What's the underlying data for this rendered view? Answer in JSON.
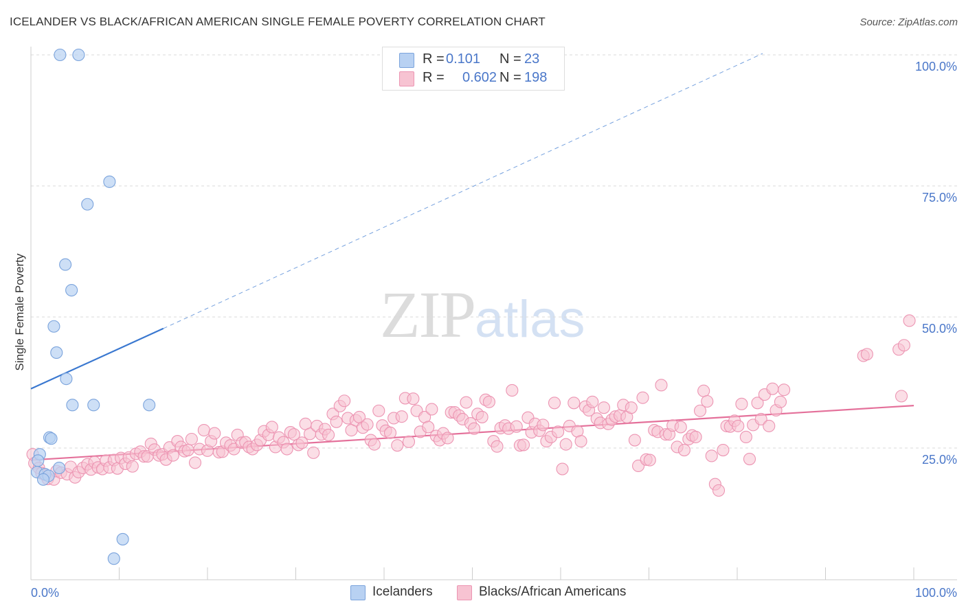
{
  "header": {
    "title": "ICELANDER VS BLACK/AFRICAN AMERICAN SINGLE FEMALE POVERTY CORRELATION CHART",
    "source": "Source: ZipAtlas.com"
  },
  "legend": {
    "rows": [
      {
        "r_label": "R =",
        "r_value": "0.101",
        "n_label": "N =",
        "n_value": "23"
      },
      {
        "r_label": "R =",
        "r_value": "0.602",
        "n_label": "N =",
        "n_value": "198"
      }
    ]
  },
  "bottom_legend": {
    "items": [
      {
        "label": "Icelanders"
      },
      {
        "label": "Blacks/African Americans"
      }
    ]
  },
  "watermark": {
    "zip": "ZIP",
    "atlas": "atlas"
  },
  "colors": {
    "blue_fill": "#b8d1f2",
    "blue_stroke": "#7aa3dc",
    "blue_line": "#3a78d0",
    "pink_fill": "#f7c3d2",
    "pink_stroke": "#ec94b2",
    "pink_line": "#e4709a",
    "grid": "#d9d9d9",
    "axis_text": "#4a77c9"
  },
  "chart_data": {
    "type": "scatter",
    "title": "ICELANDER VS BLACK/AFRICAN AMERICAN SINGLE FEMALE POVERTY CORRELATION CHART",
    "xlabel": "",
    "ylabel": "Single Female Poverty",
    "xlim": [
      0,
      100
    ],
    "ylim": [
      0,
      100
    ],
    "x_tick_labels": [
      "0.0%",
      "100.0%"
    ],
    "y_tick_labels": [
      "25.0%",
      "50.0%",
      "75.0%",
      "100.0%"
    ],
    "y_ticks": [
      25,
      50,
      75,
      100
    ],
    "grid": true,
    "legend_position": "top-center",
    "series": [
      {
        "name": "Icelanders",
        "color": "#b8d1f2",
        "R": 0.101,
        "N": 23,
        "trend": {
          "x": [
            0,
            15
          ],
          "y": [
            36.3,
            47.8
          ],
          "dashed_to": {
            "x": 100,
            "y": 110
          }
        },
        "points": [
          [
            3.3,
            100
          ],
          [
            5.4,
            100
          ],
          [
            8.9,
            75.8
          ],
          [
            6.4,
            71.5
          ],
          [
            3.9,
            60.0
          ],
          [
            4.6,
            55.1
          ],
          [
            2.6,
            48.2
          ],
          [
            2.9,
            43.2
          ],
          [
            4.0,
            38.2
          ],
          [
            4.7,
            33.2
          ],
          [
            7.1,
            33.2
          ],
          [
            13.4,
            33.2
          ],
          [
            2.1,
            27.0
          ],
          [
            2.3,
            26.8
          ],
          [
            1.0,
            23.8
          ],
          [
            0.8,
            22.6
          ],
          [
            3.2,
            21.2
          ],
          [
            0.7,
            20.4
          ],
          [
            1.6,
            20.0
          ],
          [
            2.0,
            19.7
          ],
          [
            1.4,
            19.0
          ],
          [
            10.4,
            7.6
          ],
          [
            9.4,
            3.9
          ]
        ]
      },
      {
        "name": "Blacks/African Americans",
        "color": "#f7c3d2",
        "R": 0.602,
        "N": 198,
        "trend": {
          "x": [
            0,
            100
          ],
          "y": [
            22.7,
            33.1
          ]
        },
        "points": [
          [
            0.2,
            23.8
          ],
          [
            0.4,
            22.1
          ],
          [
            0.9,
            21.2
          ],
          [
            1.2,
            20.2
          ],
          [
            1.6,
            19.9
          ],
          [
            1.9,
            19.1
          ],
          [
            2.6,
            19.0
          ],
          [
            2.9,
            20.6
          ],
          [
            3.4,
            20.3
          ],
          [
            4.1,
            20.0
          ],
          [
            4.5,
            21.4
          ],
          [
            5.0,
            19.4
          ],
          [
            5.4,
            20.4
          ],
          [
            5.9,
            21.2
          ],
          [
            6.4,
            21.9
          ],
          [
            6.8,
            20.9
          ],
          [
            7.2,
            22.3
          ],
          [
            7.6,
            21.3
          ],
          [
            8.1,
            21.0
          ],
          [
            8.5,
            22.6
          ],
          [
            8.9,
            21.3
          ],
          [
            9.4,
            22.7
          ],
          [
            9.8,
            21.1
          ],
          [
            10.2,
            23.1
          ],
          [
            10.7,
            22.0
          ],
          [
            11.1,
            23.2
          ],
          [
            11.5,
            21.5
          ],
          [
            11.9,
            23.9
          ],
          [
            12.4,
            24.3
          ],
          [
            12.8,
            23.4
          ],
          [
            13.2,
            23.4
          ],
          [
            13.6,
            25.8
          ],
          [
            14.0,
            24.7
          ],
          [
            14.5,
            23.6
          ],
          [
            14.9,
            23.8
          ],
          [
            15.3,
            22.8
          ],
          [
            15.7,
            25.1
          ],
          [
            16.1,
            23.6
          ],
          [
            16.6,
            26.3
          ],
          [
            17.0,
            25.2
          ],
          [
            17.4,
            24.4
          ],
          [
            17.8,
            24.6
          ],
          [
            18.2,
            26.7
          ],
          [
            18.6,
            22.2
          ],
          [
            19.1,
            24.8
          ],
          [
            19.6,
            28.4
          ],
          [
            20.0,
            24.5
          ],
          [
            20.4,
            26.3
          ],
          [
            20.8,
            27.8
          ],
          [
            21.3,
            24.2
          ],
          [
            21.7,
            24.3
          ],
          [
            22.1,
            26.0
          ],
          [
            22.6,
            25.5
          ],
          [
            23.0,
            24.8
          ],
          [
            23.4,
            27.5
          ],
          [
            23.9,
            26.0
          ],
          [
            24.3,
            26.1
          ],
          [
            24.7,
            25.2
          ],
          [
            25.1,
            24.8
          ],
          [
            25.6,
            25.6
          ],
          [
            26.0,
            26.5
          ],
          [
            26.4,
            28.2
          ],
          [
            26.9,
            27.5
          ],
          [
            27.3,
            29.0
          ],
          [
            27.7,
            25.2
          ],
          [
            28.1,
            27.0
          ],
          [
            28.6,
            26.1
          ],
          [
            29.0,
            24.8
          ],
          [
            29.4,
            28.0
          ],
          [
            29.8,
            27.6
          ],
          [
            30.3,
            25.6
          ],
          [
            30.7,
            26.0
          ],
          [
            31.1,
            29.6
          ],
          [
            31.6,
            27.7
          ],
          [
            32.0,
            24.1
          ],
          [
            32.4,
            29.2
          ],
          [
            32.9,
            27.6
          ],
          [
            33.3,
            28.6
          ],
          [
            33.7,
            27.5
          ],
          [
            34.2,
            31.5
          ],
          [
            34.6,
            30.0
          ],
          [
            35.0,
            33.0
          ],
          [
            35.5,
            34.0
          ],
          [
            35.9,
            30.7
          ],
          [
            36.3,
            28.4
          ],
          [
            36.8,
            30.3
          ],
          [
            37.2,
            30.9
          ],
          [
            37.6,
            28.9
          ],
          [
            38.1,
            29.5
          ],
          [
            38.5,
            26.5
          ],
          [
            38.9,
            25.7
          ],
          [
            39.4,
            32.1
          ],
          [
            39.8,
            29.3
          ],
          [
            40.2,
            28.3
          ],
          [
            40.7,
            27.9
          ],
          [
            41.1,
            30.7
          ],
          [
            41.5,
            25.5
          ],
          [
            42.0,
            31.0
          ],
          [
            42.4,
            34.5
          ],
          [
            42.8,
            26.2
          ],
          [
            43.3,
            34.4
          ],
          [
            43.7,
            32.1
          ],
          [
            44.1,
            28.1
          ],
          [
            44.6,
            30.9
          ],
          [
            45.0,
            29.0
          ],
          [
            45.4,
            32.4
          ],
          [
            45.9,
            27.3
          ],
          [
            46.3,
            26.5
          ],
          [
            46.7,
            27.8
          ],
          [
            47.2,
            26.9
          ],
          [
            47.6,
            31.8
          ],
          [
            48.0,
            31.8
          ],
          [
            48.5,
            31.2
          ],
          [
            48.9,
            30.5
          ],
          [
            49.3,
            33.7
          ],
          [
            49.8,
            29.7
          ],
          [
            50.2,
            28.7
          ],
          [
            50.6,
            31.5
          ],
          [
            51.1,
            30.9
          ],
          [
            51.5,
            34.2
          ],
          [
            51.9,
            33.8
          ],
          [
            52.4,
            26.3
          ],
          [
            52.8,
            25.3
          ],
          [
            53.2,
            28.8
          ],
          [
            53.7,
            29.3
          ],
          [
            54.1,
            28.7
          ],
          [
            54.5,
            36.0
          ],
          [
            55.0,
            29.1
          ],
          [
            55.4,
            25.5
          ],
          [
            55.8,
            25.6
          ],
          [
            56.3,
            30.8
          ],
          [
            56.7,
            28.0
          ],
          [
            57.1,
            29.6
          ],
          [
            57.6,
            28.3
          ],
          [
            58.0,
            29.4
          ],
          [
            58.4,
            26.3
          ],
          [
            58.9,
            27.1
          ],
          [
            59.3,
            33.6
          ],
          [
            59.7,
            28.1
          ],
          [
            60.2,
            21.0
          ],
          [
            60.6,
            25.7
          ],
          [
            61.0,
            29.2
          ],
          [
            61.5,
            33.6
          ],
          [
            61.9,
            28.2
          ],
          [
            62.3,
            26.3
          ],
          [
            62.8,
            32.9
          ],
          [
            63.2,
            32.2
          ],
          [
            63.6,
            33.8
          ],
          [
            64.1,
            30.6
          ],
          [
            64.5,
            29.8
          ],
          [
            64.9,
            32.7
          ],
          [
            65.4,
            29.6
          ],
          [
            65.8,
            30.4
          ],
          [
            66.2,
            31.0
          ],
          [
            66.7,
            31.2
          ],
          [
            67.1,
            33.2
          ],
          [
            67.5,
            30.9
          ],
          [
            68.0,
            32.7
          ],
          [
            68.4,
            26.5
          ],
          [
            68.8,
            21.6
          ],
          [
            69.3,
            34.6
          ],
          [
            69.7,
            22.8
          ],
          [
            70.1,
            22.7
          ],
          [
            70.6,
            28.4
          ],
          [
            71.0,
            28.1
          ],
          [
            71.4,
            37.0
          ],
          [
            71.9,
            27.6
          ],
          [
            72.3,
            27.6
          ],
          [
            72.7,
            29.3
          ],
          [
            73.2,
            25.2
          ],
          [
            73.6,
            29.0
          ],
          [
            74.0,
            24.6
          ],
          [
            74.5,
            26.7
          ],
          [
            74.9,
            27.4
          ],
          [
            75.3,
            27.1
          ],
          [
            75.8,
            32.1
          ],
          [
            76.2,
            35.9
          ],
          [
            76.6,
            33.9
          ],
          [
            77.1,
            23.5
          ],
          [
            77.5,
            18.1
          ],
          [
            77.9,
            16.9
          ],
          [
            78.4,
            24.6
          ],
          [
            78.8,
            29.2
          ],
          [
            79.2,
            29.1
          ],
          [
            79.7,
            30.2
          ],
          [
            80.1,
            29.2
          ],
          [
            80.5,
            33.4
          ],
          [
            81.0,
            27.1
          ],
          [
            81.4,
            22.9
          ],
          [
            81.8,
            29.4
          ],
          [
            82.3,
            33.6
          ],
          [
            82.7,
            30.5
          ],
          [
            83.1,
            35.2
          ],
          [
            83.6,
            29.2
          ],
          [
            84.0,
            36.3
          ],
          [
            84.4,
            32.2
          ],
          [
            84.9,
            33.8
          ],
          [
            85.3,
            36.1
          ],
          [
            98.6,
            34.9
          ],
          [
            99.5,
            49.3
          ],
          [
            94.3,
            42.6
          ],
          [
            94.7,
            42.9
          ],
          [
            98.3,
            43.8
          ],
          [
            98.9,
            44.6
          ]
        ]
      }
    ]
  }
}
